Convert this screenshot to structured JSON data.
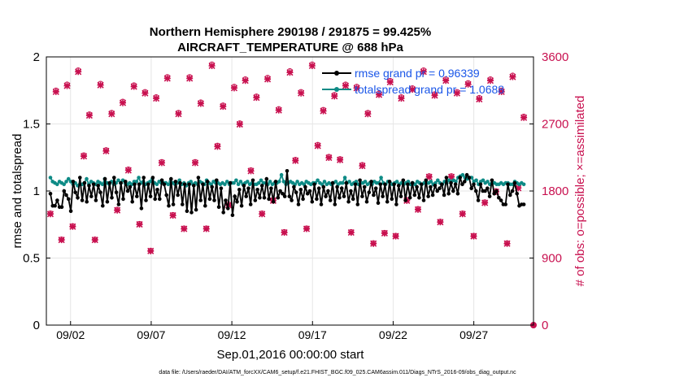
{
  "chart_data": {
    "type": "line",
    "title": "Northern Hemisphere 290198 / 291875 = 99.425%",
    "subtitle": "AIRCRAFT_TEMPERATURE @ 688 hPa",
    "xlabel": "Sep.01,2016 00:00:00 start",
    "ylabel": "rmse and totalspread",
    "y2label": "# of obs: o=possible; ×=assimilated",
    "xlim": [
      0.5,
      30.7
    ],
    "ylim": [
      0,
      2
    ],
    "y2lim": [
      0,
      3600
    ],
    "xtick_values": [
      2,
      7,
      12,
      17,
      22,
      27
    ],
    "xtick_labels": [
      "09/02",
      "09/07",
      "09/12",
      "09/17",
      "09/22",
      "09/27"
    ],
    "ytick_labels": [
      "0",
      "0.5",
      "1",
      "1.5",
      "2"
    ],
    "y2tick_labels": [
      "0",
      "900",
      "1800",
      "2700",
      "3600"
    ],
    "footnote": "data file: /Users/raeder/DAI/ATM_forcXX/CAM6_setup/f.e21.FHIST_BGC.f09_025.CAM6assim.011/Diags_NTrS_2016-09/obs_diag_output.nc",
    "series": [
      {
        "name": "rmse grand pr = 0.96339",
        "color": "#000000",
        "values": [
          0.98,
          0.89,
          0.89,
          0.93,
          0.88,
          0.88,
          1.0,
          0.97,
          0.94,
          0.85,
          1.07,
          0.99,
          0.95,
          1.1,
          0.93,
          1.06,
          0.92,
          1.04,
          0.96,
          1.05,
          0.93,
          1.04,
          0.99,
          0.89,
          1.09,
          0.92,
          1.06,
          0.95,
          1.1,
          0.99,
          0.9,
          1.06,
          0.94,
          1.07,
          1.0,
          1.03,
          0.92,
          1.05,
          0.96,
          1.05,
          0.87,
          1.1,
          0.93,
          1.05,
          0.96,
          1.1,
          0.94,
          1.01,
          0.94,
          1.08,
          1.05,
          0.97,
          0.89,
          1.09,
          0.9,
          1.07,
          0.97,
          1.06,
          0.9,
          1.05,
          0.85,
          1.05,
          0.84,
          1.04,
          0.86,
          1.1,
          0.93,
          1.05,
          0.89,
          1.07,
          0.94,
          1.03,
          0.93,
          1.08,
          0.88,
          1.02,
          0.84,
          0.93,
          0.87,
          1.06,
          0.82,
          0.96,
          0.92,
          1.01,
          0.89,
          1.04,
          0.96,
          1.02,
          0.9,
          1.08,
          0.93,
          1.01,
          0.95,
          1.04,
          0.95,
          1.09,
          0.94,
          1.02,
          0.92,
          1.07,
          0.95,
          1.0,
          0.98,
          0.96,
          1.15,
          0.96,
          0.93,
          1.03,
          0.99,
          0.9,
          1.01,
          0.94,
          1.03,
          0.98,
          1.0,
          0.92,
          1.05,
          0.94,
          1.02,
          0.9,
          1.03,
          0.96,
          1.0,
          0.93,
          1.06,
          0.9,
          1.03,
          0.95,
          1.02,
          0.96,
          1.06,
          0.92,
          1.0,
          0.94,
          1.05,
          0.9,
          1.08,
          0.96,
          1.03,
          0.92,
          0.99,
          1.07,
          0.97,
          1.02,
          0.91,
          1.05,
          0.96,
          1.05,
          0.92,
          1.07,
          0.94,
          1.05,
          0.9,
          1.04,
          0.96,
          1.08,
          0.93,
          1.05,
          0.95,
          1.06,
          0.97,
          1.03,
          0.95,
          1.05,
          0.93,
          1.08,
          0.96,
          1.03,
          0.97,
          1.04,
          1.0,
          1.02,
          1.05,
          0.97,
          1.1,
          0.98,
          1.06,
          1.0,
          1.05,
          0.98,
          1.1,
          1.05,
          1.07,
          1.12,
          1.1,
          1.02,
          1.05,
          1.0,
          0.93,
          1.05,
          1.0,
          1.0,
          1.02,
          0.96,
          1.08,
          0.98,
          1.0,
          0.95,
          0.93,
          0.9,
          0.9,
          1.05,
          0.97,
          1.0,
          1.06,
          0.98,
          0.89,
          0.9,
          0.9
        ]
      },
      {
        "name": "totalspread grand pr = 1.0688",
        "color": "#0e8b86",
        "values": [
          1.1,
          1.07,
          1.06,
          1.05,
          1.07,
          1.06,
          1.05,
          1.07,
          1.09,
          1.07,
          1.05,
          1.06,
          1.04,
          1.05,
          1.05,
          1.06,
          1.09,
          1.05,
          1.07,
          1.06,
          1.05,
          1.07,
          1.06,
          1.05,
          1.09,
          1.06,
          1.05,
          1.07,
          1.05,
          1.06,
          1.08,
          1.06,
          1.08,
          1.06,
          1.05,
          1.06,
          1.05,
          1.07,
          1.07,
          1.1,
          1.06,
          1.07,
          1.05,
          1.06,
          1.07,
          1.09,
          1.06,
          1.05,
          1.07,
          1.06,
          1.06,
          1.06,
          1.05,
          1.07,
          1.06,
          1.05,
          1.06,
          1.08,
          1.05,
          1.06,
          1.04,
          1.06,
          1.07,
          1.05,
          1.06,
          1.05,
          1.07,
          1.06,
          1.05,
          1.08,
          1.06,
          1.05,
          1.07,
          1.06,
          1.06,
          1.05,
          1.06,
          1.05,
          1.07,
          1.05,
          1.06,
          1.06,
          1.08,
          1.05,
          1.07,
          1.05,
          1.06,
          1.07,
          1.05,
          1.06,
          1.05,
          1.05,
          1.06,
          1.08,
          1.06,
          1.06,
          1.05,
          1.07,
          1.05,
          1.06,
          1.06,
          1.07,
          1.12,
          1.07,
          1.05,
          1.06,
          1.07,
          1.06,
          1.05,
          1.07,
          1.05,
          1.06,
          1.05,
          1.07,
          1.06,
          1.05,
          1.06,
          1.06,
          1.08,
          1.06,
          1.05,
          1.07,
          1.05,
          1.06,
          1.05,
          1.06,
          1.07,
          1.05,
          1.06,
          1.06,
          1.1,
          1.06,
          1.07,
          1.05,
          1.06,
          1.07,
          1.05,
          1.06,
          1.06,
          1.07,
          1.05,
          1.06,
          1.05,
          1.07,
          1.06,
          1.06,
          1.1,
          1.06,
          1.05,
          1.07,
          1.06,
          1.05,
          1.06,
          1.07,
          1.05,
          1.06,
          1.05,
          1.06,
          1.07,
          1.05,
          1.06,
          1.05,
          1.07,
          1.06,
          1.05,
          1.06,
          1.06,
          1.06,
          1.07,
          1.05,
          1.06,
          1.08,
          1.06,
          1.05,
          1.07,
          1.06,
          1.08,
          1.07,
          1.08,
          1.07,
          1.1,
          1.11,
          1.12,
          1.1,
          1.09,
          1.1,
          1.1,
          1.07,
          1.08,
          1.05,
          1.07,
          1.08,
          1.06,
          1.07,
          1.05,
          1.06,
          1.06,
          1.05,
          1.05,
          1.06,
          1.05,
          1.06,
          1.06,
          1.05,
          1.05,
          1.07,
          1.06,
          1.05,
          1.06,
          1.05
        ]
      }
    ],
    "obs_possible": [
      1500,
      3150,
      1150,
      3230,
      1330,
      3420,
      2280,
      2830,
      1150,
      3240,
      2350,
      2850,
      1550,
      3000,
      2090,
      3220,
      1360,
      3130,
      1000,
      3060,
      2190,
      3330,
      1480,
      2850,
      1300,
      3330,
      2190,
      2990,
      1300,
      3500,
      2410,
      2950,
      1620,
      3200,
      2710,
      3300,
      2080,
      3070,
      1500,
      3320,
      1680,
      2900,
      1250,
      3410,
      2220,
      3130,
      1300,
      3500,
      2420,
      2890,
      2260,
      3090,
      2230,
      3230,
      1250,
      3200,
      2150,
      2850,
      1100,
      3110,
      1240,
      3280,
      1200,
      3060,
      1680,
      3180,
      1560,
      3420,
      2000,
      3100,
      1390,
      3300,
      2000,
      3130,
      1500,
      3250,
      1200,
      3050,
      1650,
      3300,
      1800,
      3150,
      1100,
      3350,
      1850,
      2800
    ]
  },
  "legend": {
    "rmse_label": "rmse grand pr = 0.96339",
    "spread_label": "totalspread grand pr = 1.0688"
  }
}
